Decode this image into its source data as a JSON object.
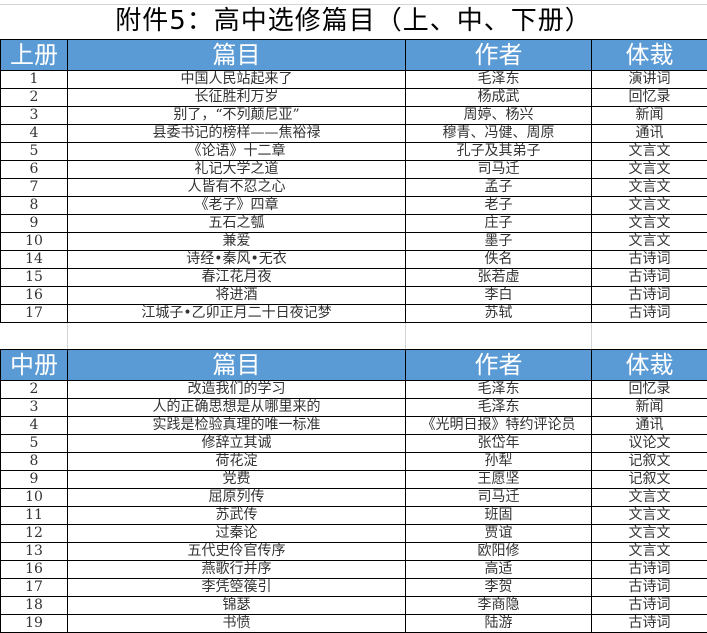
{
  "title": "附件5：高中选修篇目（上、中、下册）",
  "colors": {
    "header_bg": "#5b9bd5",
    "header_text": "#ffffff"
  },
  "upper": {
    "headers": [
      "上册",
      "篇目",
      "作者",
      "体裁"
    ],
    "rows": [
      [
        "1",
        "中国人民站起来了",
        "毛泽东",
        "演讲词"
      ],
      [
        "2",
        "长征胜利万岁",
        "杨成武",
        "回忆录"
      ],
      [
        "3",
        "别了，“不列颠尼亚”",
        "周婷、杨兴",
        "新闻"
      ],
      [
        "4",
        "县委书记的榜样——焦裕禄",
        "穆青、冯健、周原",
        "通讯"
      ],
      [
        "5",
        "《论语》十二章",
        "孔子及其弟子",
        "文言文"
      ],
      [
        "6",
        "礼记大学之道",
        "司马迁",
        "文言文"
      ],
      [
        "7",
        "人皆有不忍之心",
        "孟子",
        "文言文"
      ],
      [
        "8",
        "《老子》四章",
        "老子",
        "文言文"
      ],
      [
        "9",
        "五石之瓠",
        "庄子",
        "文言文"
      ],
      [
        "10",
        "兼爱",
        "墨子",
        "文言文"
      ],
      [
        "14",
        "诗经•秦风•无衣",
        "佚名",
        "古诗词"
      ],
      [
        "15",
        "春江花月夜",
        "张若虚",
        "古诗词"
      ],
      [
        "16",
        "将进酒",
        "李白",
        "古诗词"
      ],
      [
        "17",
        "江城子•乙卯正月二十日夜记梦",
        "苏轼",
        "古诗词"
      ]
    ]
  },
  "middle": {
    "headers": [
      "中册",
      "篇目",
      "作者",
      "体裁"
    ],
    "rows": [
      [
        "2",
        "改造我们的学习",
        "毛泽东",
        "回忆录"
      ],
      [
        "3",
        "人的正确思想是从哪里来的",
        "毛泽东",
        "新闻"
      ],
      [
        "4",
        "实践是检验真理的唯一标准",
        "《光明日报》特约评论员",
        "通讯"
      ],
      [
        "5",
        "修辞立其诚",
        "张岱年",
        "议论文"
      ],
      [
        "8",
        "荷花淀",
        "孙犁",
        "记叙文"
      ],
      [
        "9",
        "党费",
        "王愿坚",
        "记叙文"
      ],
      [
        "10",
        "屈原列传",
        "司马迁",
        "文言文"
      ],
      [
        "11",
        "苏武传",
        "班固",
        "文言文"
      ],
      [
        "12",
        "过秦论",
        "贾谊",
        "文言文"
      ],
      [
        "13",
        "五代史伶官传序",
        "欧阳修",
        "文言文"
      ],
      [
        "16",
        "燕歌行并序",
        "高适",
        "古诗词"
      ],
      [
        "17",
        "李凭箜篌引",
        "李贺",
        "古诗词"
      ],
      [
        "18",
        "锦瑟",
        "李商隐",
        "古诗词"
      ],
      [
        "19",
        "书愤",
        "陆游",
        "古诗词"
      ]
    ]
  }
}
